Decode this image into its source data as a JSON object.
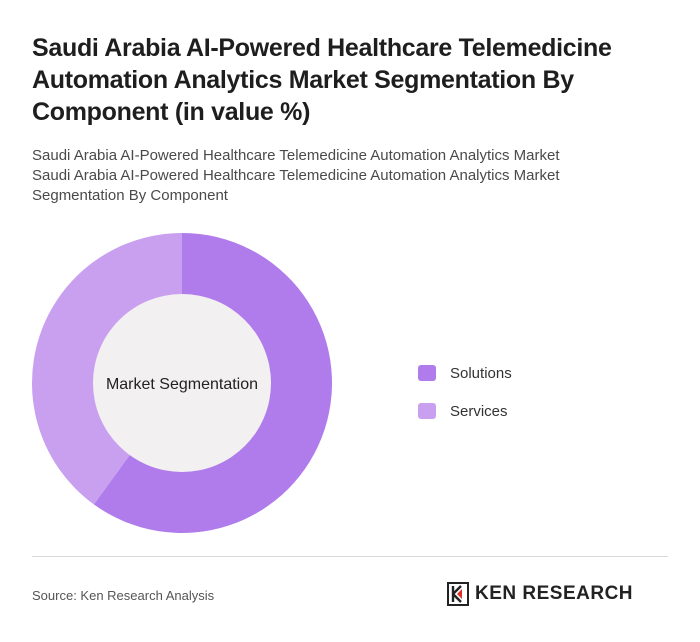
{
  "title": "Saudi Arabia AI-Powered Healthcare Telemedicine Automation Analytics Market Segmentation By Component (in value %)",
  "subtitle_lines": [
    "Saudi Arabia AI-Powered Healthcare Telemedicine Automation Analytics Market",
    "Saudi Arabia AI-Powered Healthcare Telemedicine Automation Analytics Market",
    "Segmentation By Component"
  ],
  "chart_data": {
    "type": "pie",
    "variant": "donut",
    "center_label": "Market Segmentation",
    "categories": [
      "Solutions",
      "Services"
    ],
    "values": [
      60,
      40
    ],
    "colors": [
      "#b07cec",
      "#c9a0f0"
    ],
    "legend_position": "right"
  },
  "footer": {
    "source": "Source: Ken Research Analysis",
    "logo_text": "KEN RESEARCH"
  },
  "colors": {
    "hole": "#f2f0f1",
    "divider": "#d8d8d8"
  }
}
